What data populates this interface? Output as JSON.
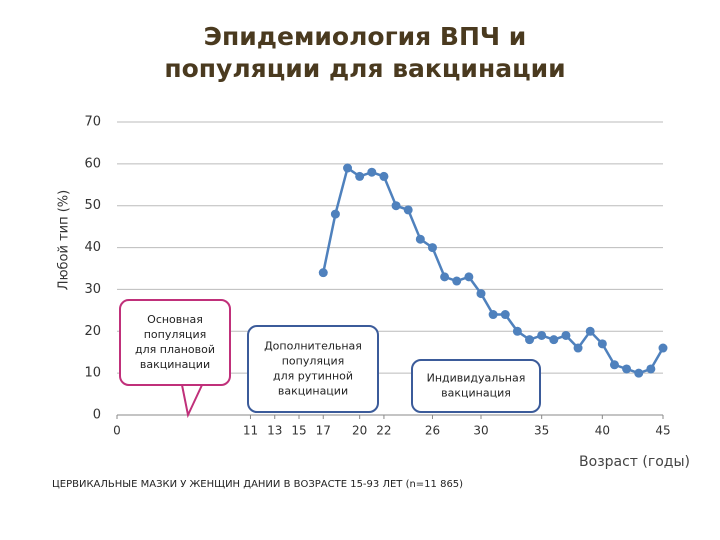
{
  "chart_data": {
    "type": "line",
    "title": [
      "Эпидемиология ВПЧ и",
      "популяции для вакцинации"
    ],
    "ylabel": "Любой тип (%)",
    "xlabel": "Возраст (годы)",
    "footnote": "ЦЕРВИКАЛЬНЫЕ МАЗКИ У ЖЕНЩИН ДАНИИ В ВОЗРАСТЕ 15-93 ЛЕТ (n=11 865)",
    "x": [
      17,
      18,
      19,
      20,
      21,
      22,
      23,
      24,
      25,
      26,
      27,
      28,
      29,
      30,
      31,
      32,
      33,
      34,
      35,
      36,
      37,
      38,
      39,
      40,
      41,
      42,
      43,
      44,
      45
    ],
    "series": [
      {
        "name": "Любой тип",
        "color": "#4f81bd",
        "values": [
          34,
          48,
          59,
          57,
          58,
          57,
          50,
          49,
          42,
          40,
          33,
          32,
          33,
          29,
          24,
          24,
          20,
          18,
          19,
          18,
          19,
          16,
          20,
          17,
          12,
          11,
          10,
          11,
          16
        ]
      }
    ],
    "xlim": [
      0,
      45
    ],
    "xticks": [
      0,
      11,
      13,
      15,
      17,
      20,
      22,
      26,
      30,
      35,
      40,
      45
    ],
    "ylim": [
      0,
      70
    ],
    "yticks": [
      0,
      10,
      20,
      30,
      40,
      50,
      60,
      70
    ],
    "grid": true,
    "annotations": [
      {
        "lines": [
          "Основная",
          "популяция",
          "для плановой",
          "вакцинации"
        ],
        "color": "#c0307a"
      },
      {
        "lines": [
          "Дополнительная",
          "популяция",
          "для рутинной",
          "вакцинации"
        ],
        "color": "#3b5b9a"
      },
      {
        "lines": [
          "Индивидуальная",
          "вакцинация"
        ],
        "color": "#3b5b9a"
      }
    ]
  }
}
